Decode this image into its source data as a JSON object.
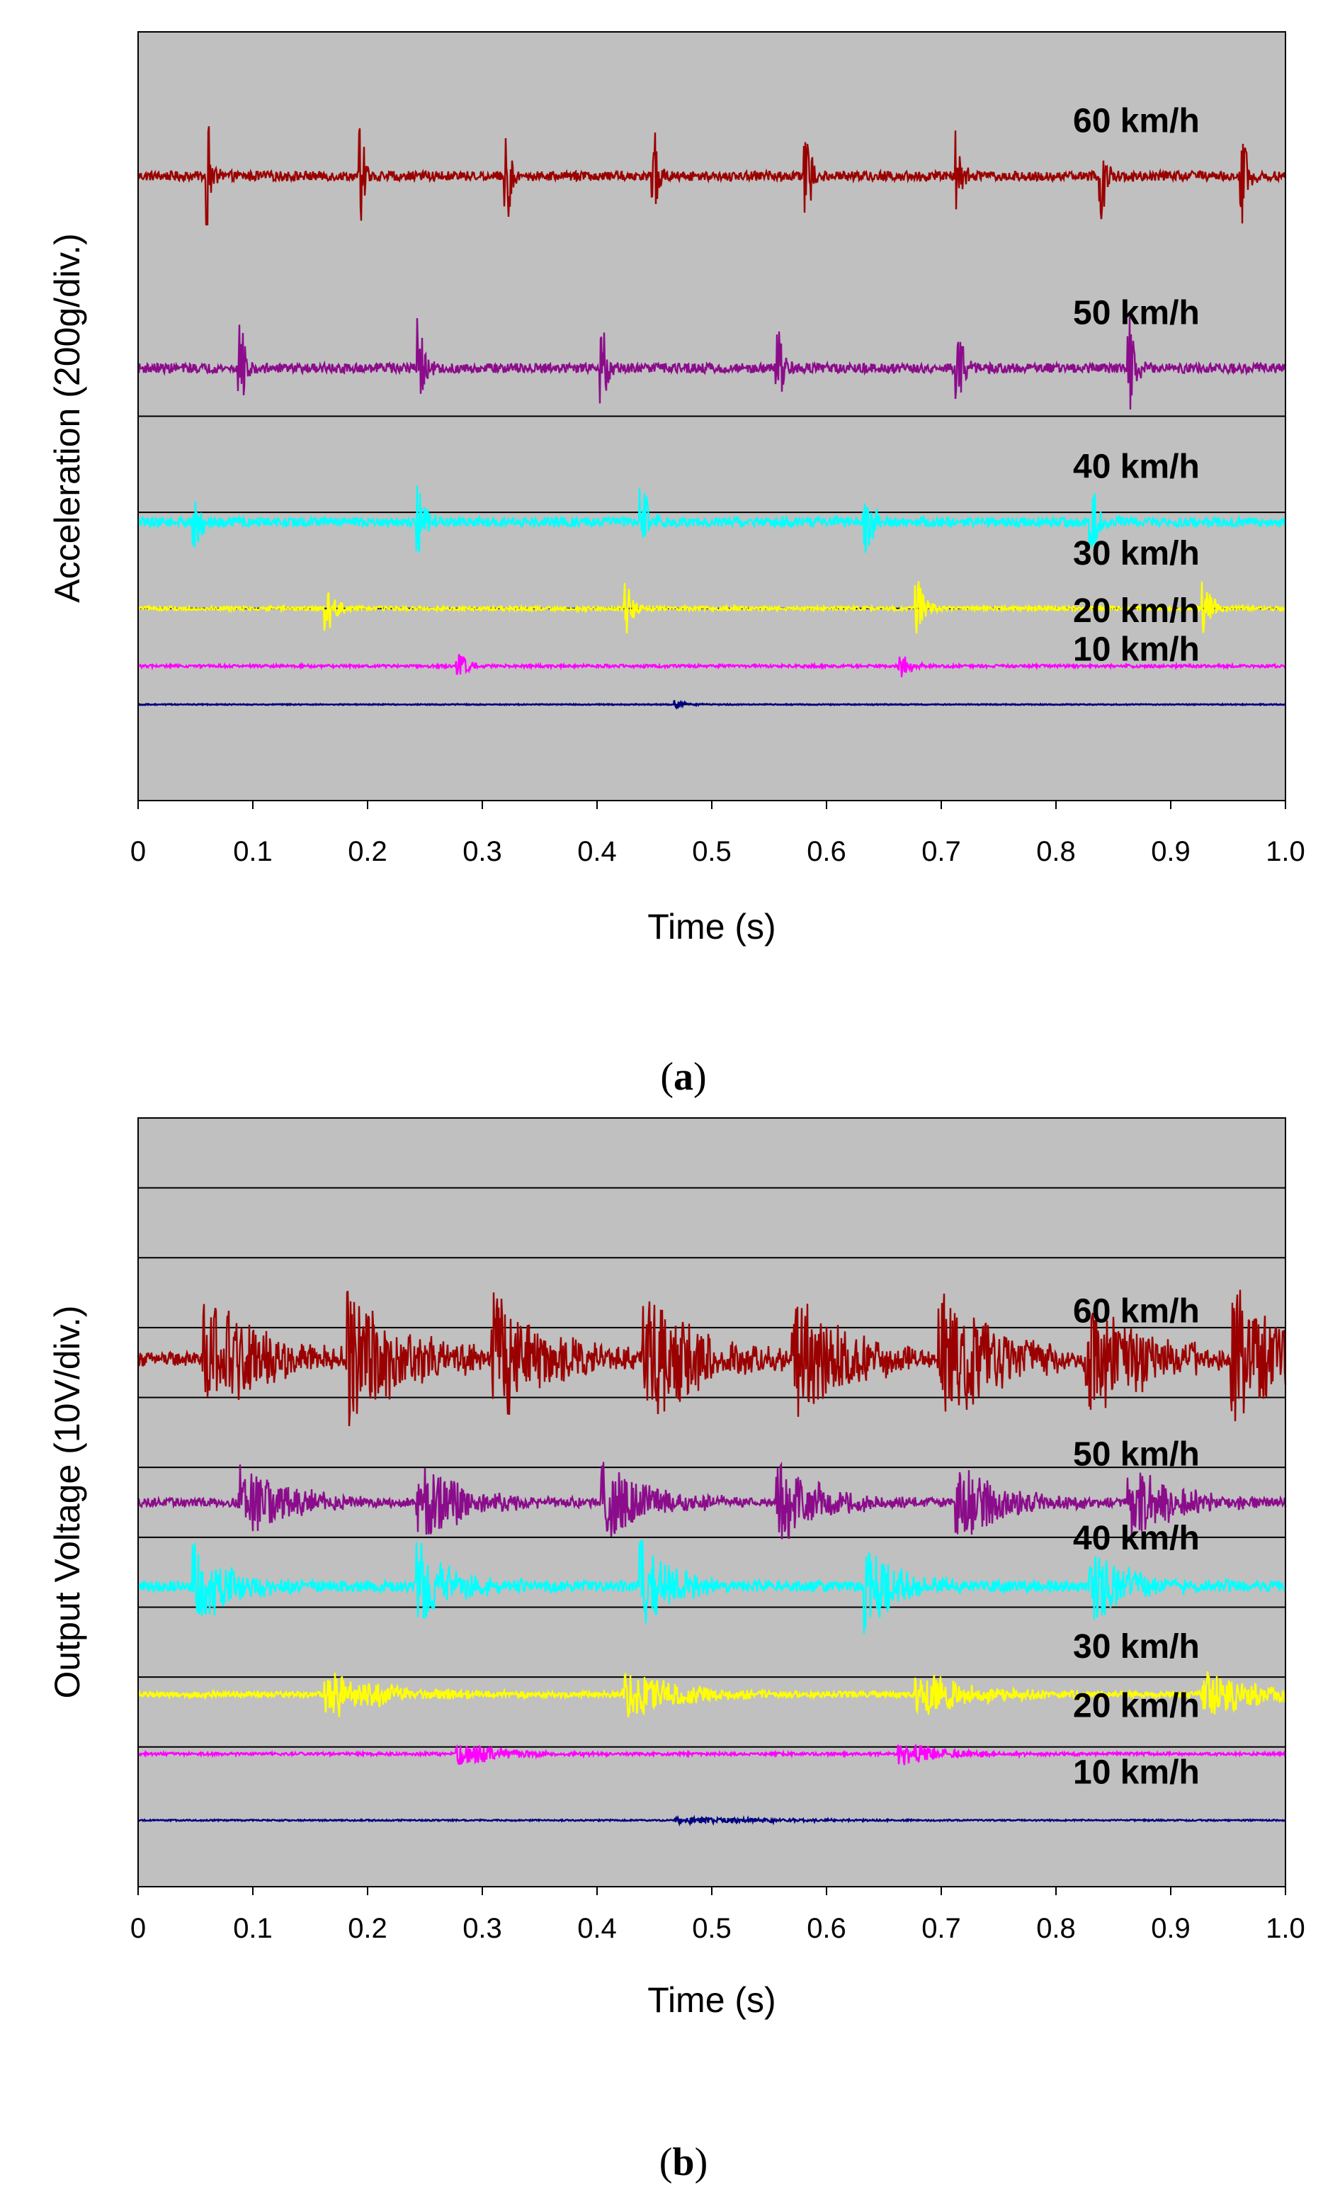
{
  "chart_data": [
    {
      "type": "line",
      "panel_label": "a",
      "xlabel": "Time (s)",
      "ylabel": "Acceleration (200g/div.)",
      "x_ticks": [
        "0",
        "0.1",
        "0.2",
        "0.3",
        "0.4",
        "0.5",
        "0.6",
        "0.7",
        "0.8",
        "0.9",
        "1.0"
      ],
      "xlim": [
        0,
        1.0
      ],
      "y_divisions": 8,
      "grid_lines_div": [
        1,
        2,
        3,
        4
      ],
      "series": [
        {
          "name": "60 km/h",
          "label": "60 km/h",
          "color": "#9b0000",
          "offset_div": 6.5,
          "amplitude_div": 0.55,
          "noise_div": 0.05,
          "decay_s": 0.004,
          "peaks": [
            0.062,
            0.195,
            0.322,
            0.45,
            0.583,
            0.715,
            0.84,
            0.963
          ]
        },
        {
          "name": "50 km/h",
          "label": "50 km/h",
          "color": "#8b0c8b",
          "offset_div": 4.5,
          "amplitude_div": 0.5,
          "noise_div": 0.05,
          "decay_s": 0.005,
          "peaks": [
            0.09,
            0.245,
            0.405,
            0.558,
            0.715,
            0.865
          ]
        },
        {
          "name": "40 km/h",
          "label": "40 km/h",
          "color": "#00ffff",
          "offset_div": 2.9,
          "amplitude_div": 0.4,
          "noise_div": 0.05,
          "decay_s": 0.006,
          "peaks": [
            0.05,
            0.245,
            0.44,
            0.635,
            0.832
          ]
        },
        {
          "name": "30 km/h",
          "label": "30 km/h",
          "color": "#ffff00",
          "offset_div": 2.0,
          "amplitude_div": 0.3,
          "noise_div": 0.02,
          "decay_s": 0.007,
          "peaks": [
            0.165,
            0.425,
            0.68,
            0.93
          ]
        },
        {
          "name": "20 km/h",
          "label": "20 km/h",
          "color": "#ff00ff",
          "offset_div": 1.4,
          "amplitude_div": 0.15,
          "noise_div": 0.015,
          "decay_s": 0.008,
          "peaks": [
            0.28,
            0.665
          ]
        },
        {
          "name": "10 km/h",
          "label": "10 km/h",
          "color": "#000080",
          "offset_div": 1.0,
          "amplitude_div": 0.05,
          "noise_div": 0.006,
          "decay_s": 0.01,
          "peaks": [
            0.47
          ]
        }
      ]
    },
    {
      "type": "line",
      "panel_label": "b",
      "xlabel": "Time (s)",
      "ylabel": "Output Voltage (10V/div.)",
      "x_ticks": [
        "0",
        "0.1",
        "0.2",
        "0.3",
        "0.4",
        "0.5",
        "0.6",
        "0.7",
        "0.8",
        "0.9",
        "1.0"
      ],
      "xlim": [
        0,
        1.0
      ],
      "y_divisions": 11,
      "grid_lines_div": [
        2,
        3,
        4,
        5,
        6,
        7,
        8,
        9,
        10
      ],
      "series": [
        {
          "name": "60 km/h",
          "label": "60 km/h",
          "color": "#9b0000",
          "offset_div": 7.55,
          "amplitude_div": 1.0,
          "noise_div": 0.1,
          "decay_s": 0.05,
          "peaks": [
            0.058,
            0.185,
            0.31,
            0.442,
            0.572,
            0.7,
            0.828,
            0.955
          ]
        },
        {
          "name": "50 km/h",
          "label": "50 km/h",
          "color": "#8b0c8b",
          "offset_div": 5.5,
          "amplitude_div": 0.6,
          "noise_div": 0.06,
          "decay_s": 0.04,
          "peaks": [
            0.09,
            0.245,
            0.405,
            0.558,
            0.715,
            0.865
          ]
        },
        {
          "name": "40 km/h",
          "label": "40 km/h",
          "color": "#00ffff",
          "offset_div": 4.3,
          "amplitude_div": 0.65,
          "noise_div": 0.08,
          "decay_s": 0.03,
          "peaks": [
            0.05,
            0.245,
            0.44,
            0.635,
            0.832
          ]
        },
        {
          "name": "30 km/h",
          "label": "30 km/h",
          "color": "#ffff00",
          "offset_div": 2.75,
          "amplitude_div": 0.35,
          "noise_div": 0.04,
          "decay_s": 0.05,
          "peaks": [
            0.165,
            0.425,
            0.68,
            0.93
          ]
        },
        {
          "name": "20 km/h",
          "label": "20 km/h",
          "color": "#ff00ff",
          "offset_div": 1.9,
          "amplitude_div": 0.18,
          "noise_div": 0.02,
          "decay_s": 0.04,
          "peaks": [
            0.28,
            0.665
          ]
        },
        {
          "name": "10 km/h",
          "label": "10 km/h",
          "color": "#000080",
          "offset_div": 0.95,
          "amplitude_div": 0.06,
          "noise_div": 0.01,
          "decay_s": 0.08,
          "peaks": [
            0.47
          ]
        }
      ]
    }
  ]
}
